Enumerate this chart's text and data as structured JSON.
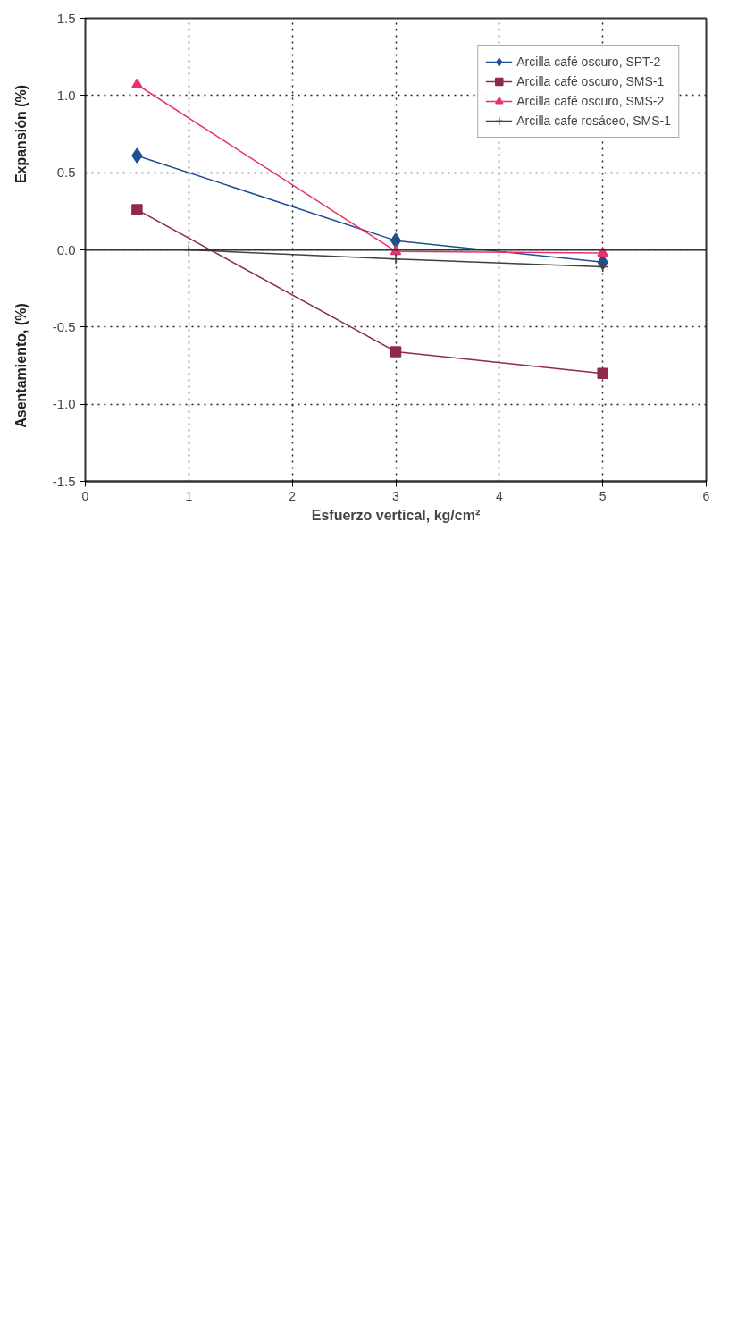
{
  "chart_data": {
    "type": "line",
    "xlabel": "Esfuerzo vertical, kg/cm²",
    "ylabel": "Expansión (%)",
    "annotations": [
      "Asentamiento, (%)"
    ],
    "xlim": [
      0,
      6
    ],
    "xticks": [
      0,
      1,
      2,
      3,
      4,
      5,
      6
    ],
    "ylim": [
      -1.5,
      1.5
    ],
    "yticks": [
      -1.5,
      {
        "value": -1,
        "label": "-1.0"
      },
      -0.5,
      {
        "value": 0,
        "label": "0.0"
      },
      0.5,
      {
        "value": 1,
        "label": "1.0"
      },
      1.5
    ],
    "grid": true,
    "ref_lines": [
      {
        "axis": "y",
        "value": 0,
        "color": "#333333"
      }
    ],
    "legend": "top right",
    "line_style": "solid",
    "series": [
      {
        "name": "Arcilla café oscuro, SPT-2",
        "color": "#1f4f8f",
        "marker": "diamond",
        "x": [
          0.5,
          3,
          5
        ],
        "values": [
          0.61,
          0.06,
          -0.08
        ]
      },
      {
        "name": "Arcilla café oscuro, SMS-1",
        "color": "#8e2a4a",
        "marker": "square",
        "x": [
          0.5,
          3,
          5
        ],
        "values": [
          0.26,
          -0.66,
          -0.8
        ]
      },
      {
        "name": "Arcilla café oscuro, SMS-2",
        "color": "#e8336b",
        "marker": "triangle",
        "x": [
          0.5,
          3,
          5
        ],
        "values": [
          1.07,
          -0.01,
          -0.02
        ]
      },
      {
        "name": "Arcilla cafe rosáceo, SMS-1",
        "color": "#404040",
        "marker": "cross",
        "x": [
          1,
          3,
          5
        ],
        "values": [
          0.0,
          -0.06,
          -0.11
        ]
      }
    ]
  }
}
